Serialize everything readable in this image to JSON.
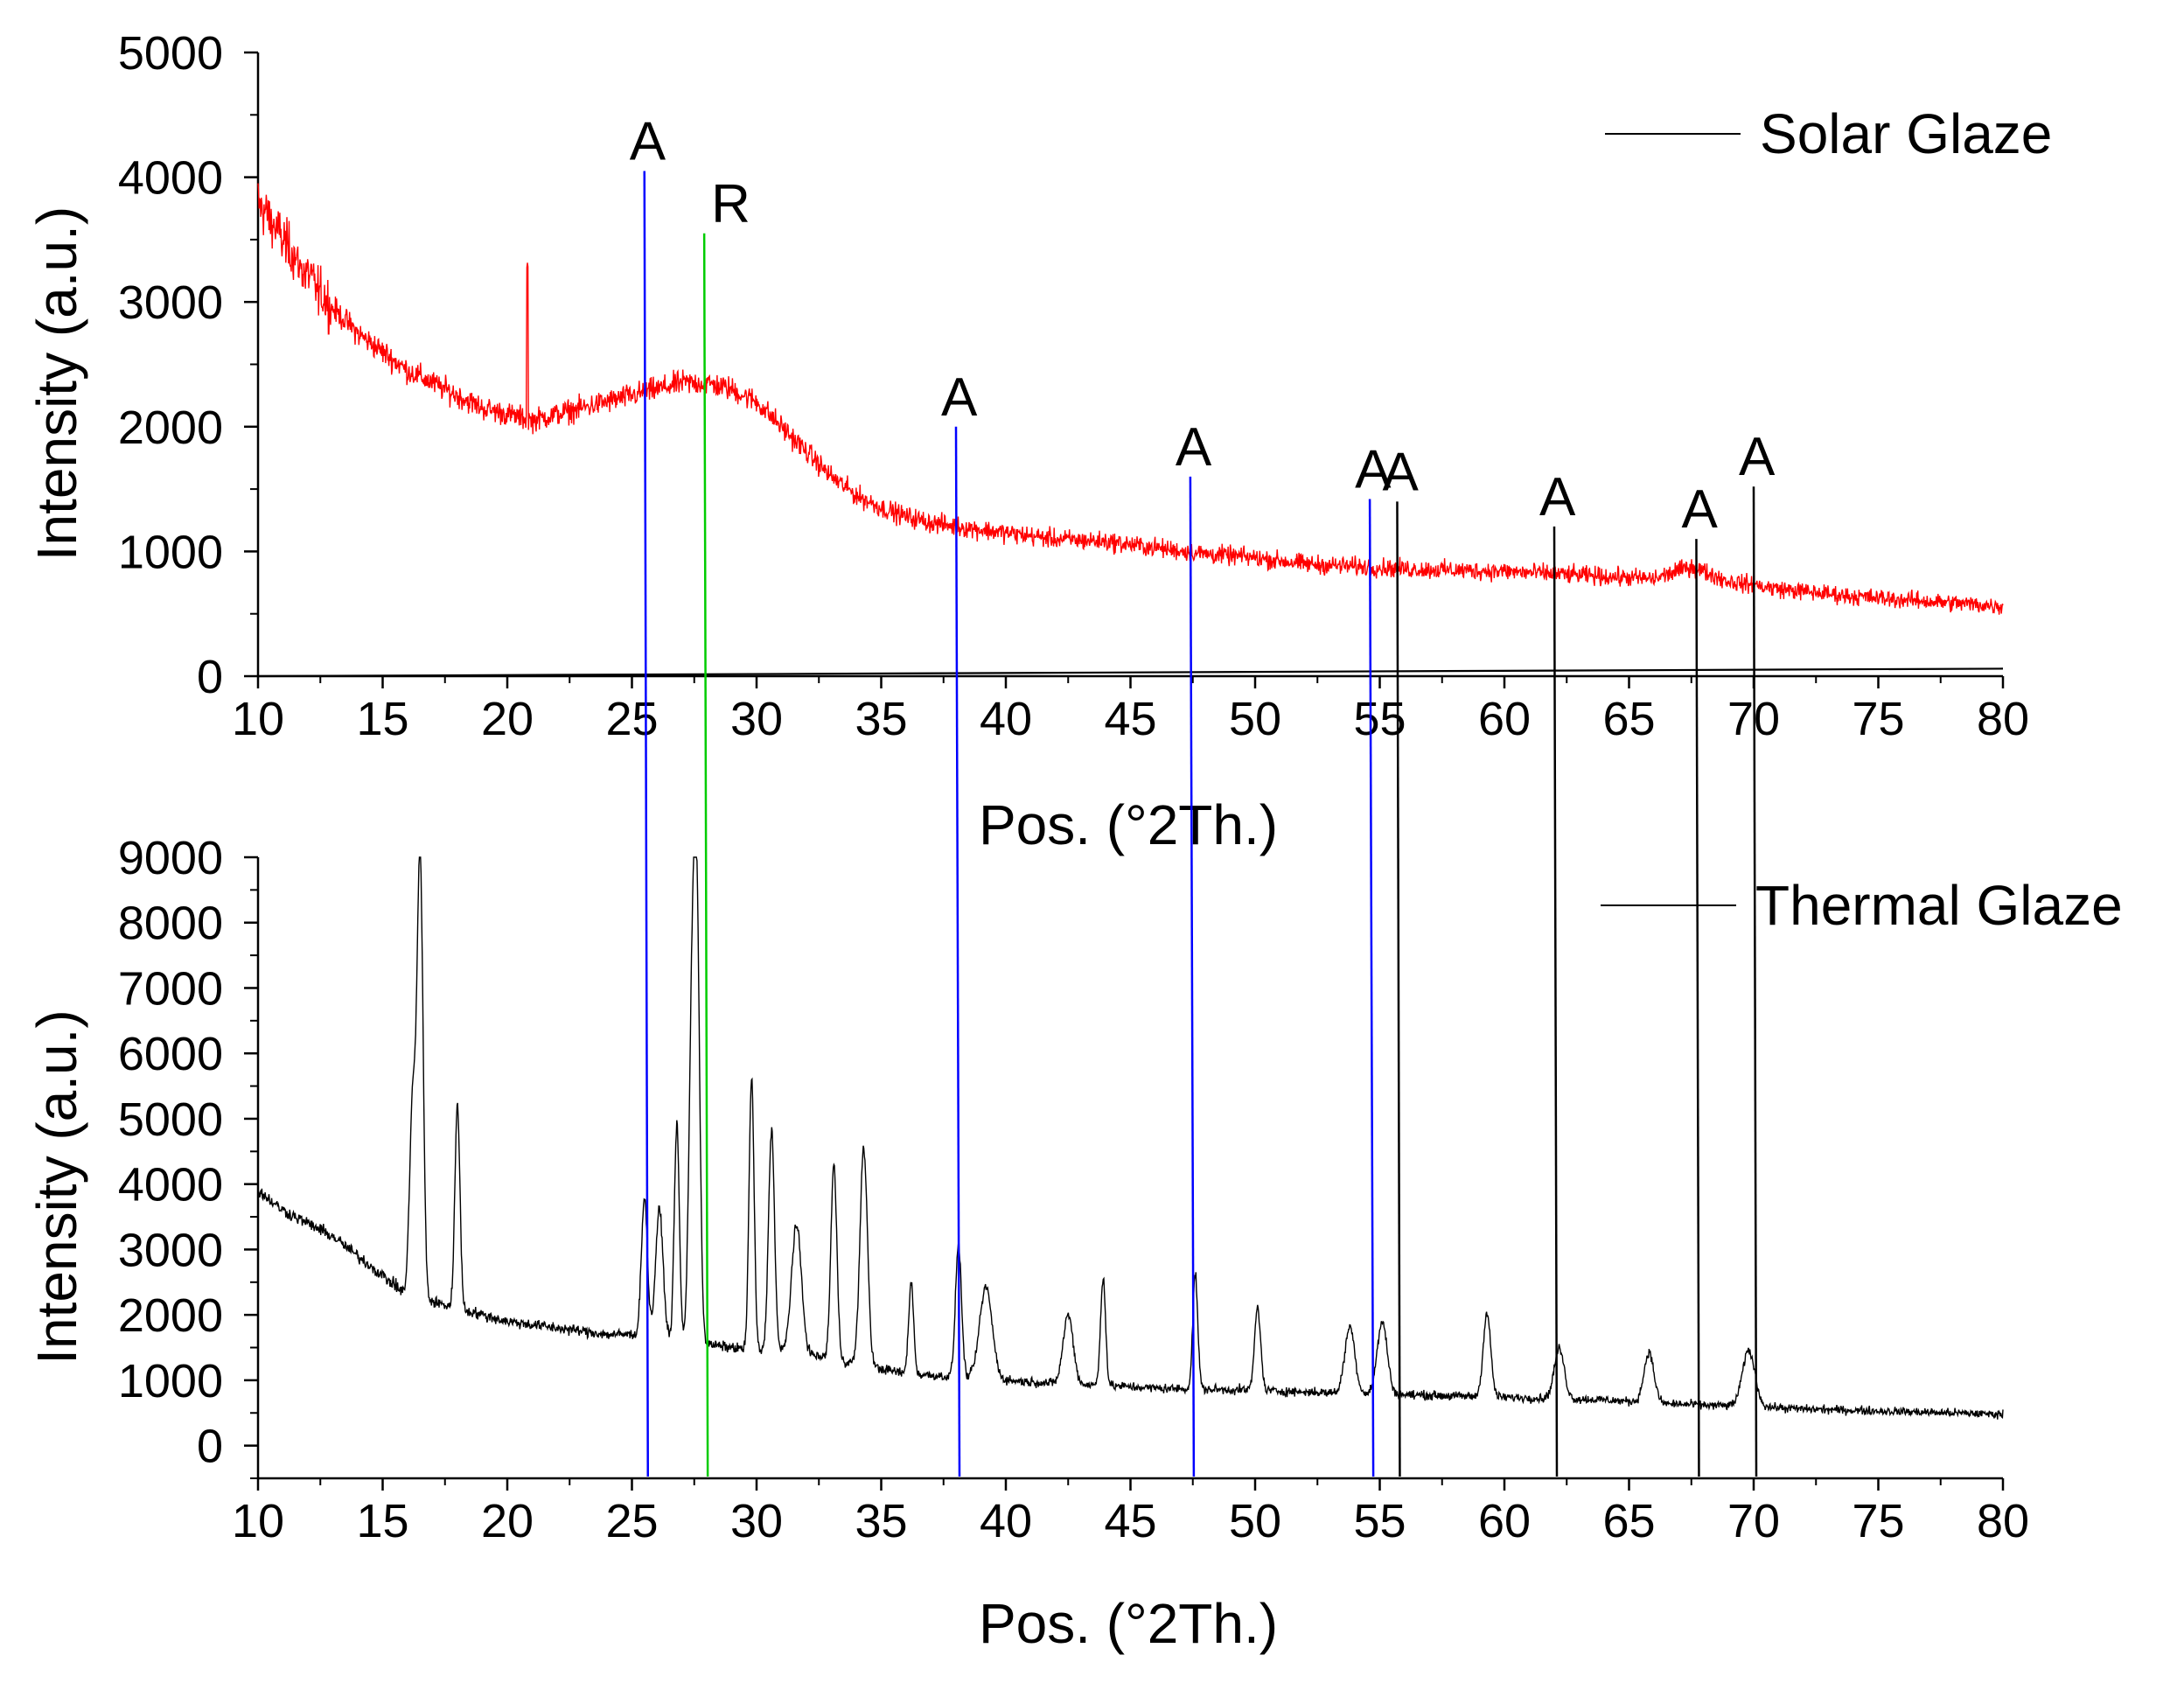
{
  "chart_data": [
    {
      "type": "line",
      "xlabel": "Pos. (°2Th.)",
      "ylabel": "Intensity (a.u.)",
      "xlim": [
        10,
        80
      ],
      "ylim": [
        0,
        5000
      ],
      "xticks": [
        10,
        15,
        20,
        25,
        30,
        35,
        40,
        45,
        50,
        55,
        60,
        65,
        70,
        75,
        80
      ],
      "yticks": [
        0,
        1000,
        2000,
        3000,
        4000,
        5000
      ],
      "legend_position": "top-right",
      "series": [
        {
          "name": "Solar Glaze",
          "color": "#ff0000",
          "noise": 150,
          "x": [
            10,
            11,
            12,
            13,
            14,
            15,
            16,
            17,
            18,
            19,
            20,
            21,
            22,
            23,
            24,
            25,
            26,
            27,
            28,
            29,
            30,
            31,
            32,
            33,
            34,
            35,
            36,
            37,
            38,
            40,
            42,
            44,
            46,
            48,
            50,
            52,
            54,
            56,
            58,
            60,
            62,
            64,
            66,
            67.5,
            69,
            71,
            74,
            77,
            80
          ],
          "y": [
            3800,
            3500,
            3200,
            2950,
            2750,
            2600,
            2450,
            2350,
            2250,
            2150,
            2100,
            2050,
            2100,
            2150,
            2200,
            2250,
            2300,
            2350,
            2350,
            2300,
            2200,
            2000,
            1800,
            1600,
            1450,
            1350,
            1280,
            1230,
            1200,
            1150,
            1100,
            1080,
            1030,
            980,
            950,
            900,
            880,
            860,
            850,
            840,
            820,
            800,
            780,
            880,
            760,
            700,
            640,
            600,
            560
          ],
          "spikes": [
            {
              "x": 20.8,
              "y": 3300
            }
          ]
        },
        {
          "name": "",
          "color": "#000000",
          "noise": 0,
          "x": [
            10,
            80
          ],
          "y": [
            0,
            60
          ]
        }
      ],
      "reference_lines": [
        {
          "x": 25.5,
          "label": "A",
          "color": "#0000ff",
          "top": 4050
        },
        {
          "x": 27.9,
          "label": "R",
          "color": "#00cc00",
          "top": 3550
        },
        {
          "x": 38.0,
          "label": "A",
          "color": "#0000ff",
          "top": 2000
        },
        {
          "x": 47.4,
          "label": "A",
          "color": "#0000ff",
          "top": 1600
        },
        {
          "x": 54.6,
          "label": "A",
          "color": "#0000ff",
          "top": 1420
        },
        {
          "x": 55.7,
          "label": "A",
          "color": "#000000",
          "top": 1400
        },
        {
          "x": 62.0,
          "label": "A",
          "color": "#000000",
          "top": 1200
        },
        {
          "x": 67.7,
          "label": "A",
          "color": "#000000",
          "top": 1100
        },
        {
          "x": 70.0,
          "label": "A",
          "color": "#000000",
          "top": 1520
        }
      ]
    },
    {
      "type": "line",
      "xlabel": "Pos. (°2Th.)",
      "ylabel": "Intensity (a.u.)",
      "xlim": [
        10,
        80
      ],
      "ylim": [
        -500,
        9000
      ],
      "xticks": [
        10,
        15,
        20,
        25,
        30,
        35,
        40,
        45,
        50,
        55,
        60,
        65,
        70,
        75,
        80
      ],
      "yticks": [
        0,
        1000,
        2000,
        3000,
        4000,
        5000,
        6000,
        7000,
        8000,
        9000
      ],
      "legend_position": "top-right",
      "series": [
        {
          "name": "Thermal Glaze",
          "color": "#000000",
          "noise": 140,
          "x": [
            10,
            11,
            12,
            13,
            14,
            15,
            16,
            17,
            18,
            19,
            20,
            21,
            22,
            23,
            24,
            25,
            26,
            27,
            28,
            29,
            30,
            32,
            34,
            36,
            38,
            40,
            42,
            44,
            46,
            48,
            50,
            52,
            54,
            56,
            58,
            60,
            62,
            64,
            66,
            68,
            70,
            72,
            74,
            76,
            78,
            80
          ],
          "y": [
            3900,
            3600,
            3400,
            3200,
            2900,
            2600,
            2300,
            2200,
            2100,
            2000,
            1900,
            1850,
            1800,
            1750,
            1700,
            1700,
            1650,
            1600,
            1550,
            1500,
            1450,
            1400,
            1250,
            1100,
            1050,
            1000,
            950,
            920,
            880,
            860,
            850,
            820,
            800,
            780,
            760,
            740,
            720,
            700,
            650,
            620,
            600,
            560,
            540,
            520,
            500,
            480
          ],
          "peaks": [
            {
              "x": 16.2,
              "y": 3500,
              "w": 0.12
            },
            {
              "x": 16.5,
              "y": 8000,
              "w": 0.12
            },
            {
              "x": 18.0,
              "y": 3700,
              "w": 0.1
            },
            {
              "x": 25.5,
              "y": 2500,
              "w": 0.12
            },
            {
              "x": 26.1,
              "y": 2300,
              "w": 0.15
            },
            {
              "x": 26.8,
              "y": 3900,
              "w": 0.1
            },
            {
              "x": 27.4,
              "y": 5300,
              "w": 0.12
            },
            {
              "x": 27.6,
              "y": 7600,
              "w": 0.12
            },
            {
              "x": 29.8,
              "y": 4900,
              "w": 0.1
            },
            {
              "x": 30.6,
              "y": 4000,
              "w": 0.12
            },
            {
              "x": 31.6,
              "y": 2300,
              "w": 0.2
            },
            {
              "x": 33.1,
              "y": 3500,
              "w": 0.12
            },
            {
              "x": 34.3,
              "y": 3900,
              "w": 0.15
            },
            {
              "x": 36.2,
              "y": 1650,
              "w": 0.1
            },
            {
              "x": 38.1,
              "y": 2400,
              "w": 0.12
            },
            {
              "x": 39.2,
              "y": 1650,
              "w": 0.25
            },
            {
              "x": 42.5,
              "y": 1250,
              "w": 0.2
            },
            {
              "x": 43.9,
              "y": 1950,
              "w": 0.1
            },
            {
              "x": 47.6,
              "y": 2050,
              "w": 0.1
            },
            {
              "x": 50.1,
              "y": 1500,
              "w": 0.12
            },
            {
              "x": 53.8,
              "y": 1200,
              "w": 0.2
            },
            {
              "x": 55.1,
              "y": 1300,
              "w": 0.2
            },
            {
              "x": 59.3,
              "y": 1500,
              "w": 0.15
            },
            {
              "x": 62.2,
              "y": 900,
              "w": 0.2
            },
            {
              "x": 65.8,
              "y": 900,
              "w": 0.2
            },
            {
              "x": 69.8,
              "y": 1000,
              "w": 0.25
            }
          ]
        }
      ],
      "reference_lines": [
        {
          "x": 25.5,
          "color": "#0000ff",
          "top": 9000
        },
        {
          "x": 27.9,
          "color": "#00cc00",
          "top": 9000
        },
        {
          "x": 38.0,
          "color": "#0000ff",
          "top": 9000
        },
        {
          "x": 47.4,
          "color": "#0000ff",
          "top": 9000
        },
        {
          "x": 54.6,
          "color": "#0000ff",
          "top": 9000
        },
        {
          "x": 55.7,
          "color": "#000000",
          "top": 9000
        },
        {
          "x": 62.0,
          "color": "#000000",
          "top": 9000
        },
        {
          "x": 67.7,
          "color": "#000000",
          "top": 9000
        },
        {
          "x": 70.0,
          "color": "#000000",
          "top": 9000
        }
      ]
    }
  ]
}
